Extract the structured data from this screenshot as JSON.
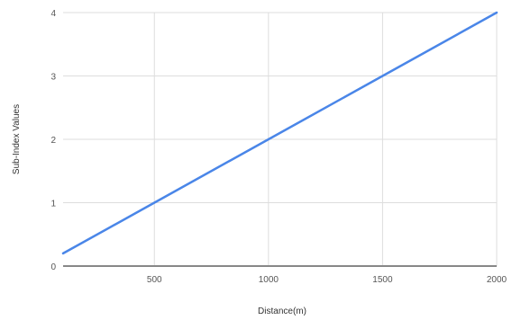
{
  "chart_data": {
    "type": "line",
    "xlabel": "Distance(m)",
    "ylabel": "Sub-Index Values",
    "xlim": [
      100,
      2000
    ],
    "ylim": [
      0,
      4
    ],
    "x_ticks": [
      500,
      1000,
      1500,
      2000
    ],
    "y_ticks": [
      0,
      1,
      2,
      3,
      4
    ],
    "grid": true,
    "series": [
      {
        "color": "#4a86e8",
        "x": [
          100,
          500,
          1000,
          1500,
          2000
        ],
        "y": [
          0.2,
          1,
          2,
          3,
          4
        ]
      }
    ]
  },
  "x_tick_labels": [
    "500",
    "1000",
    "1500",
    "2000"
  ],
  "y_tick_labels": [
    "0",
    "1",
    "2",
    "3",
    "4"
  ],
  "colors": {
    "grid": "#dddddd",
    "baseline": "#888888",
    "line": "#4a86e8"
  }
}
